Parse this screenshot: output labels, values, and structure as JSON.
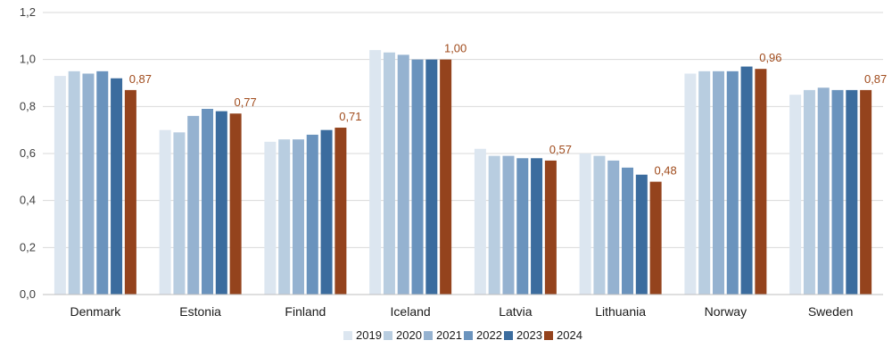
{
  "chart_data": {
    "type": "bar",
    "title": "",
    "xlabel": "",
    "ylabel": "",
    "categories": [
      "Denmark",
      "Estonia",
      "Finland",
      "Iceland",
      "Latvia",
      "Lithuania",
      "Norway",
      "Sweden"
    ],
    "ylim": [
      0,
      1.2
    ],
    "yticks": [
      0,
      0.2,
      0.4,
      0.6,
      0.8,
      1.0,
      1.2
    ],
    "ytick_labels": [
      "0,0",
      "0,2",
      "0,4",
      "0,6",
      "0,8",
      "1,0",
      "1,2"
    ],
    "grid": true,
    "legend_position": "bottom",
    "series": [
      {
        "name": "2019",
        "color": "#dce6f0",
        "values": [
          0.93,
          0.7,
          0.65,
          1.04,
          0.62,
          0.6,
          0.94,
          0.85
        ]
      },
      {
        "name": "2020",
        "color": "#b8cde0",
        "values": [
          0.95,
          0.69,
          0.66,
          1.03,
          0.59,
          0.59,
          0.95,
          0.87
        ]
      },
      {
        "name": "2021",
        "color": "#95b2d0",
        "values": [
          0.94,
          0.76,
          0.66,
          1.02,
          0.59,
          0.57,
          0.95,
          0.88
        ]
      },
      {
        "name": "2022",
        "color": "#6a93bd",
        "values": [
          0.95,
          0.79,
          0.68,
          1.0,
          0.58,
          0.54,
          0.95,
          0.87
        ]
      },
      {
        "name": "2023",
        "color": "#3b6c9e",
        "values": [
          0.92,
          0.78,
          0.7,
          1.0,
          0.58,
          0.51,
          0.97,
          0.87
        ]
      },
      {
        "name": "2024",
        "color": "#94431d",
        "values": [
          0.87,
          0.77,
          0.71,
          1.0,
          0.57,
          0.48,
          0.96,
          0.87
        ]
      }
    ],
    "data_labels": {
      "series": "2024",
      "labels": [
        "0,87",
        "0,77",
        "0,71",
        "1,00",
        "0,57",
        "0,48",
        "0,96",
        "0,87"
      ]
    }
  }
}
